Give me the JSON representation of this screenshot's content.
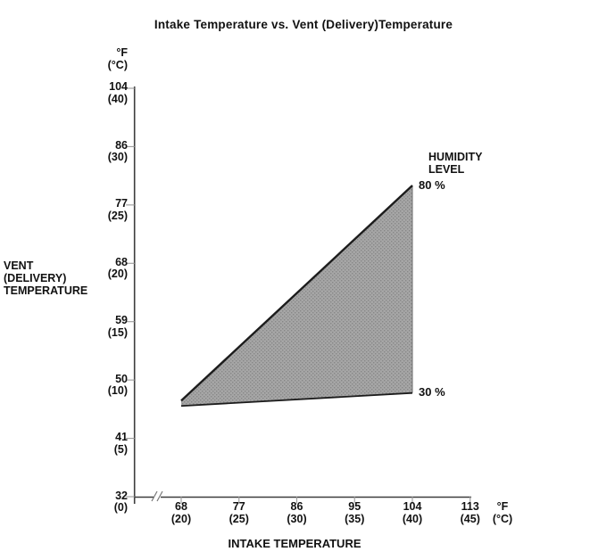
{
  "title": "Intake Temperature vs. Vent (Delivery)Temperature",
  "y_axis": {
    "title_lines": [
      "VENT",
      "(DELIVERY)",
      "TEMPERATURE"
    ],
    "unit_f": "°F",
    "unit_c": "(°C)"
  },
  "x_axis": {
    "title": "INTAKE TEMPERATURE",
    "unit_f": "°F",
    "unit_c": "(°C)"
  },
  "legend": {
    "title_lines": [
      "HUMIDITY",
      "LEVEL"
    ],
    "upper_label": "80 %",
    "lower_label": "30 %"
  },
  "chart_data": {
    "type": "area",
    "title": "Intake Temperature vs. Vent (Delivery)Temperature",
    "xlabel": "INTAKE TEMPERATURE",
    "ylabel": "VENT (DELIVERY) TEMPERATURE",
    "x_unit": "°F (°C)",
    "y_unit": "°F (°C)",
    "axis_break_before_first_x_tick": true,
    "grid": false,
    "x_ticks": [
      {
        "f": 68,
        "label_f": "68",
        "label_c": "(20)"
      },
      {
        "f": 77,
        "label_f": "77",
        "label_c": "(25)"
      },
      {
        "f": 86,
        "label_f": "86",
        "label_c": "(30)"
      },
      {
        "f": 95,
        "label_f": "95",
        "label_c": "(35)"
      },
      {
        "f": 104,
        "label_f": "104",
        "label_c": "(40)"
      },
      {
        "f": 113,
        "label_f": "113",
        "label_c": "(45)"
      }
    ],
    "y_ticks": [
      {
        "f": 104,
        "label_f": "104",
        "label_c": "(40)"
      },
      {
        "f": 86,
        "label_f": "86",
        "label_c": "(30)"
      },
      {
        "f": 77,
        "label_f": "77",
        "label_c": "(25)"
      },
      {
        "f": 68,
        "label_f": "68",
        "label_c": "(20)"
      },
      {
        "f": 59,
        "label_f": "59",
        "label_c": "(15)"
      },
      {
        "f": 50,
        "label_f": "50",
        "label_c": "(10)"
      },
      {
        "f": 41,
        "label_f": "41",
        "label_c": "(5)"
      },
      {
        "f": 32,
        "label_f": "32",
        "label_c": "(0)"
      }
    ],
    "series": [
      {
        "name": "80 % humidity level",
        "points_f": [
          [
            68,
            46.8
          ],
          [
            104,
            80
          ]
        ]
      },
      {
        "name": "30 % humidity level",
        "points_f": [
          [
            68,
            46.0
          ],
          [
            104,
            48
          ]
        ]
      }
    ],
    "region_note": "Shaded band between the 30 % and 80 % humidity lines, closed with a vertical edge at intake 104 °F (40 °C)",
    "colors": {
      "region_fill": "#a6a6a6",
      "line": "#1c1c1c",
      "axis": "#3d3d3d",
      "tick": "#9a9a9a",
      "text": "#111111"
    }
  }
}
